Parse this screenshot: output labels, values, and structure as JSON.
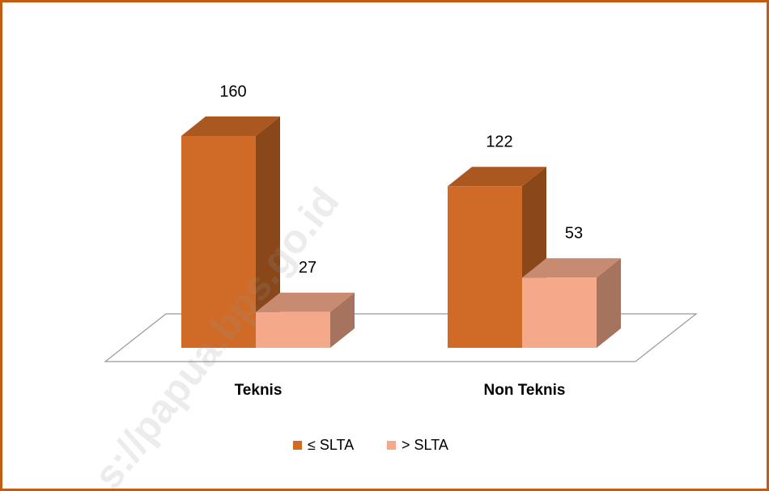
{
  "chart_data": {
    "type": "bar3d",
    "categories": [
      "Teknis",
      "Non Teknis"
    ],
    "series": [
      {
        "name": "≤ SLTA",
        "color": "#d06b27",
        "values": [
          160,
          122
        ]
      },
      {
        "name": "> SLTA",
        "color": "#f3a98a",
        "values": [
          27,
          53
        ]
      }
    ],
    "legend": "bottom",
    "watermark": "s://papua.bps.go.id"
  }
}
